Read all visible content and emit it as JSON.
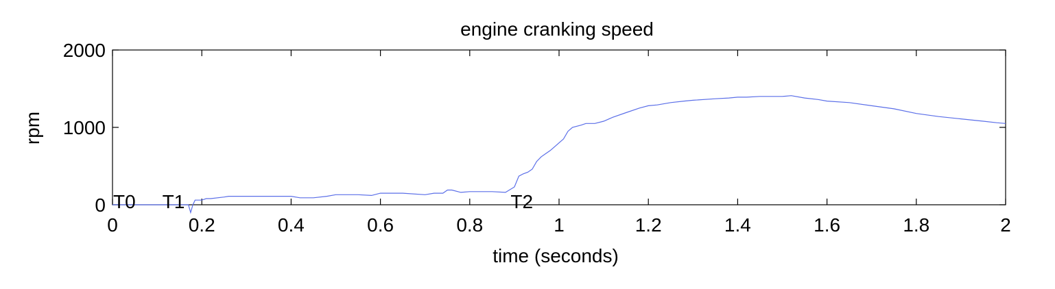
{
  "chart_data": {
    "type": "line",
    "title": "engine cranking speed",
    "xlabel": "time (seconds)",
    "ylabel": "rpm",
    "xlim": [
      0,
      2
    ],
    "ylim": [
      0,
      2000
    ],
    "xticks": [
      0,
      0.2,
      0.4,
      0.6,
      0.8,
      1,
      1.2,
      1.4,
      1.6,
      1.8,
      2
    ],
    "xtick_labels": [
      "0",
      "0.2",
      "0.4",
      "0.6",
      "0.8",
      "1",
      "1.2",
      "1.4",
      "1.6",
      "1.8",
      "2"
    ],
    "yticks": [
      0,
      1000,
      2000
    ],
    "ytick_labels": [
      "0",
      "1000",
      "2000"
    ],
    "grid": false,
    "line_color": "#5a6ee8",
    "annotations": [
      {
        "text": "T0",
        "x": 0.0,
        "y": 140
      },
      {
        "text": "T1",
        "x": 0.11,
        "y": 140
      },
      {
        "text": "T2",
        "x": 0.89,
        "y": 140
      }
    ],
    "series": [
      {
        "x": [
          0,
          0.1,
          0.17,
          0.175,
          0.18,
          0.185,
          0.19,
          0.2,
          0.21,
          0.22,
          0.25,
          0.26,
          0.3,
          0.35,
          0.4,
          0.42,
          0.45,
          0.48,
          0.5,
          0.55,
          0.58,
          0.6,
          0.65,
          0.7,
          0.72,
          0.74,
          0.75,
          0.76,
          0.78,
          0.8,
          0.85,
          0.88,
          0.9,
          0.91,
          0.92,
          0.93,
          0.94,
          0.95,
          0.96,
          0.97,
          0.98,
          0.99,
          1.0,
          1.01,
          1.02,
          1.03,
          1.05,
          1.06,
          1.08,
          1.1,
          1.12,
          1.15,
          1.18,
          1.2,
          1.22,
          1.25,
          1.28,
          1.3,
          1.35,
          1.38,
          1.4,
          1.42,
          1.45,
          1.48,
          1.5,
          1.52,
          1.55,
          1.58,
          1.6,
          1.65,
          1.7,
          1.75,
          1.8,
          1.85,
          1.9,
          1.95,
          1.98,
          2.0
        ],
        "y": [
          0,
          0,
          0,
          -100,
          0,
          60,
          60,
          60,
          80,
          80,
          100,
          110,
          110,
          110,
          110,
          90,
          90,
          110,
          130,
          130,
          120,
          150,
          150,
          130,
          150,
          150,
          190,
          190,
          160,
          170,
          170,
          160,
          230,
          370,
          400,
          420,
          460,
          560,
          620,
          660,
          700,
          750,
          800,
          850,
          950,
          1000,
          1030,
          1050,
          1050,
          1080,
          1130,
          1190,
          1250,
          1280,
          1290,
          1320,
          1340,
          1350,
          1370,
          1380,
          1390,
          1390,
          1400,
          1400,
          1400,
          1410,
          1380,
          1360,
          1340,
          1320,
          1280,
          1240,
          1180,
          1140,
          1110,
          1080,
          1060,
          1050
        ]
      }
    ]
  }
}
